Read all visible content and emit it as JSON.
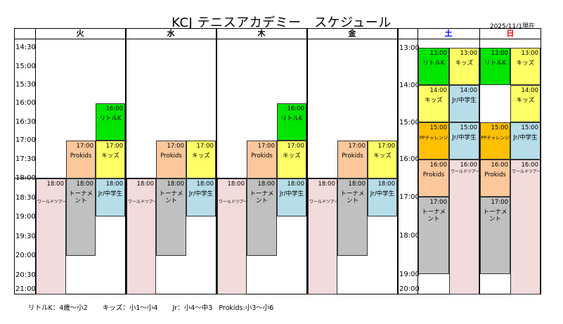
{
  "title": "KCJ テニスアカデミー　スケジュール",
  "date_note": "2025/11/1現在",
  "weekday_headers": [
    "火",
    "水",
    "木",
    "金"
  ],
  "weekend_headers": [
    {
      "label": "土",
      "color": "#0000ff"
    },
    {
      "label": "日",
      "color": "#ff0000"
    }
  ],
  "weekday_times": [
    "14:30",
    "15:00",
    "15:30",
    "16:00",
    "16:30",
    "17:00",
    "17:30",
    "18:00",
    "18:30",
    "19:00",
    "19:30",
    "20:00",
    "20:30",
    "21:00"
  ],
  "weekend_times": [
    "13:00",
    "14:00",
    "15:00",
    "16:00",
    "17:00",
    "18:00",
    "19:00",
    "20:00"
  ],
  "weekday_blocks": {
    "tue": [
      {
        "time": "18:00",
        "name": "ワールドツアー",
        "class": "pink"
      },
      {
        "time": "17:00",
        "name": "Prokids",
        "class": "peach"
      },
      {
        "time": "18:00",
        "name": "トーナメント",
        "class": "gray"
      },
      {
        "time": "16:00",
        "name": "リトルK",
        "class": "green"
      },
      {
        "time": "17:00",
        "name": "キッズ",
        "class": "yellow"
      },
      {
        "time": "18:00",
        "name": "Jr/中学生",
        "class": "lblue"
      }
    ],
    "wed": [
      {
        "time": "18:00",
        "name": "ワールドツアー",
        "class": "pink"
      },
      {
        "time": "17:00",
        "name": "Prokids",
        "class": "peach"
      },
      {
        "time": "18:00",
        "name": "トーナメント",
        "class": "gray"
      },
      {
        "time": "17:00",
        "name": "キッズ",
        "class": "yellow"
      },
      {
        "time": "18:00",
        "name": "Jr/中学生",
        "class": "lblue"
      }
    ],
    "thu": [
      {
        "time": "18:00",
        "name": "ワールドツアー",
        "class": "pink"
      },
      {
        "time": "17:00",
        "name": "Prokids",
        "class": "peach"
      },
      {
        "time": "18:00",
        "name": "トーナメント",
        "class": "gray"
      },
      {
        "time": "16:00",
        "name": "リトルK",
        "class": "green"
      },
      {
        "time": "17:00",
        "name": "キッズ",
        "class": "yellow"
      },
      {
        "time": "18:00",
        "name": "Jr/中学生",
        "class": "lblue"
      }
    ],
    "fri": [
      {
        "time": "18:00",
        "name": "ワールドツアー",
        "class": "pink"
      },
      {
        "time": "17:00",
        "name": "Prokids",
        "class": "peach"
      },
      {
        "time": "18:00",
        "name": "トーナメント",
        "class": "gray"
      },
      {
        "time": "17:00",
        "name": "キッズ",
        "class": "yellow"
      },
      {
        "time": "18:00",
        "name": "Jr/中学生",
        "class": "lblue"
      }
    ]
  },
  "weekend_blocks": {
    "sat": [
      {
        "time": "13:00",
        "name": "リトルK",
        "class": "green"
      },
      {
        "time": "13:00",
        "name": "キッズ",
        "class": "yellow"
      },
      {
        "time": "14:00",
        "name": "キッズ",
        "class": "yellow"
      },
      {
        "time": "14:00",
        "name": "Jr/中学生",
        "class": "lblue"
      },
      {
        "time": "15:00",
        "name": "PPチャレンジ",
        "class": "orange"
      },
      {
        "time": "15:00",
        "name": "Jr/中学生",
        "class": "lblue"
      },
      {
        "time": "16:00",
        "name": "Prokids",
        "class": "peach"
      },
      {
        "time": "16:00",
        "name": "ワールドツアー",
        "class": "pink"
      },
      {
        "time": "17:00",
        "name": "トーナメント",
        "class": "gray"
      }
    ],
    "sun": [
      {
        "time": "13:00",
        "name": "リトルK",
        "class": "green"
      },
      {
        "time": "13:00",
        "name": "キッズ",
        "class": "yellow"
      },
      {
        "time": "14:00",
        "name": "キッズ",
        "class": "yellow"
      },
      {
        "time": "15:00",
        "name": "PPチャレンジ",
        "class": "orange"
      },
      {
        "time": "15:00",
        "name": "Jr/中学生",
        "class": "lblue"
      },
      {
        "time": "16:00",
        "name": "Prokids",
        "class": "peach"
      },
      {
        "time": "16:00",
        "name": "ワールドツアー",
        "class": "pink"
      },
      {
        "time": "17:00",
        "name": "トーナメント",
        "class": "gray"
      }
    ]
  },
  "legend": [
    "リトルK：4歳～小2",
    "キッズ：小1～小4",
    "Jr：小4～中3",
    "Prokids:小3～小6"
  ],
  "colors": {
    "green": "#00e600",
    "yellow": "#ffff66",
    "peach": "#fcc89b",
    "gray": "#c0c0c0",
    "lblue": "#b6dde8",
    "pink": "#f2dcdb",
    "orange": "#ffc000"
  }
}
